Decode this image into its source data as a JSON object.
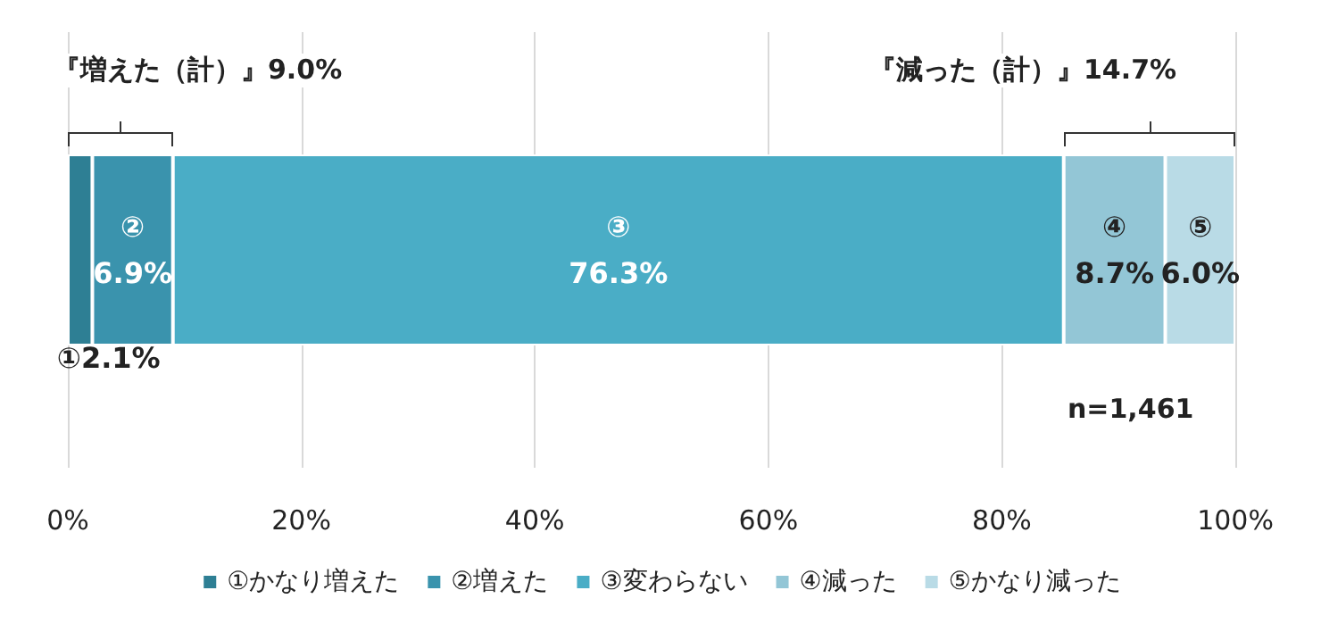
{
  "chart_data": {
    "type": "bar",
    "orientation": "horizontal",
    "stacked": true,
    "categories": [
      null
    ],
    "series": [
      {
        "name": "①かなり増えた",
        "color": "#2e7f94",
        "values": [
          2.1
        ],
        "value_labels": [
          "①2.1%"
        ]
      },
      {
        "name": "②増えた",
        "color": "#3a93ad",
        "values": [
          6.9
        ],
        "value_labels": [
          "②\n6.9%"
        ]
      },
      {
        "name": "③変わらない",
        "color": "#4aadc6",
        "values": [
          76.3
        ],
        "value_labels": [
          "③\n76.3%"
        ]
      },
      {
        "name": "④減った",
        "color": "#93c6d6",
        "values": [
          8.7
        ],
        "value_labels": [
          "④\n8.7%"
        ]
      },
      {
        "name": "⑤かなり減った",
        "color": "#b9dbe6",
        "values": [
          6.0
        ],
        "value_labels": [
          "⑤\n6.0%"
        ]
      }
    ],
    "xlim": [
      0,
      100
    ],
    "xticks": [
      {
        "value": 0,
        "label": "0%"
      },
      {
        "value": 20,
        "label": "20%"
      },
      {
        "value": 40,
        "label": "40%"
      },
      {
        "value": 60,
        "label": "60%"
      },
      {
        "value": 80,
        "label": "80%"
      },
      {
        "value": 100,
        "label": "100%"
      }
    ],
    "grid": "x",
    "legend": "bottom",
    "annotations": [
      "『増えた（計）』9.0%",
      "『減った（計）』14.7%",
      "n=1,461"
    ]
  }
}
